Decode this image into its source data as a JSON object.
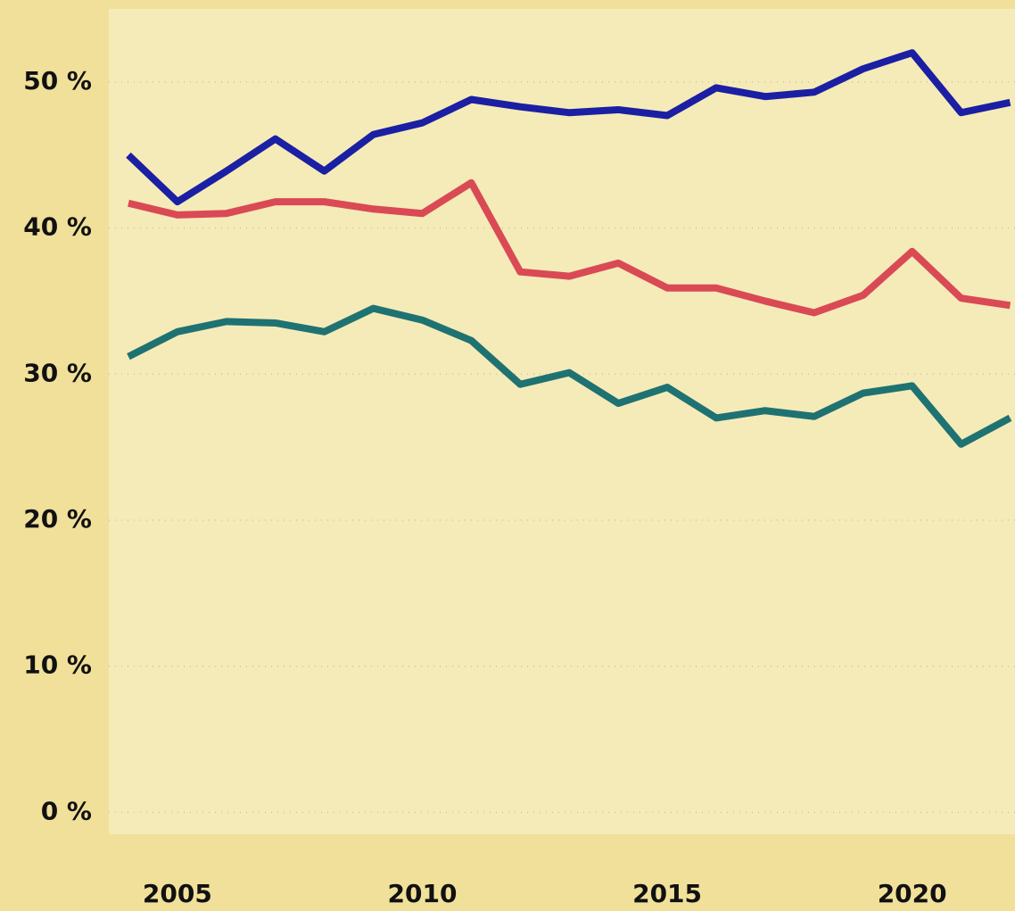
{
  "chart_data": {
    "type": "line",
    "x": [
      2004,
      2005,
      2006,
      2007,
      2008,
      2009,
      2010,
      2011,
      2012,
      2013,
      2014,
      2015,
      2016,
      2017,
      2018,
      2019,
      2020,
      2021,
      2022
    ],
    "series": [
      {
        "color": "#1b1fa3",
        "values": [
          45.0,
          41.8,
          43.9,
          46.1,
          43.9,
          46.4,
          47.2,
          48.8,
          48.3,
          47.9,
          48.1,
          47.7,
          49.6,
          49.0,
          49.3,
          50.9,
          52.0,
          47.9,
          48.6
        ]
      },
      {
        "color": "#d94a55",
        "values": [
          41.7,
          40.9,
          41.0,
          41.8,
          41.8,
          41.3,
          41.0,
          43.1,
          37.0,
          36.7,
          37.6,
          35.9,
          35.9,
          35.0,
          34.2,
          35.4,
          38.4,
          35.2,
          34.7
        ]
      },
      {
        "color": "#1f7272",
        "values": [
          31.2,
          32.9,
          33.6,
          33.5,
          32.9,
          34.5,
          33.7,
          32.3,
          29.3,
          30.1,
          28.0,
          29.1,
          27.0,
          27.5,
          27.1,
          28.7,
          29.2,
          25.2,
          27.0
        ]
      }
    ],
    "xlim": [
      2003.6,
      2022.1
    ],
    "xticks": [
      2005,
      2010,
      2015,
      2020
    ],
    "ylim": [
      -1.5,
      55
    ],
    "yticks": [
      {
        "value": 0,
        "label": "0 %"
      },
      {
        "value": 10,
        "label": "10 %"
      },
      {
        "value": 20,
        "label": "20 %"
      },
      {
        "value": 30,
        "label": "30 %"
      },
      {
        "value": 40,
        "label": "40 %"
      },
      {
        "value": 50,
        "label": "50 %"
      }
    ],
    "grid": true
  }
}
